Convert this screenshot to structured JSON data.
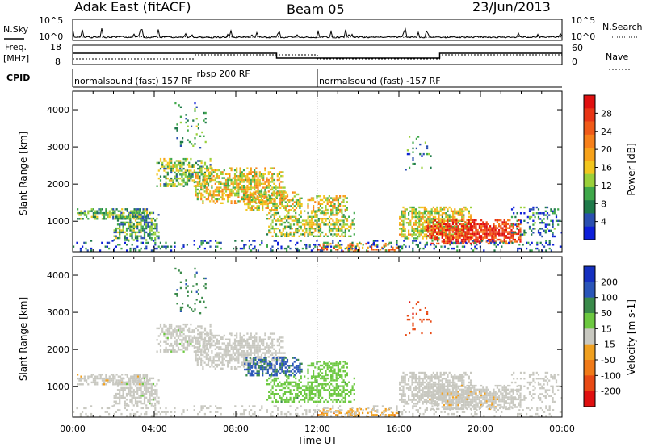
{
  "header": {
    "radar": "Adak East (fitACF)",
    "beam": "Beam 05",
    "date": "23/Jun/2013"
  },
  "noise_panel": {
    "left_label": "N.Sky",
    "left_ticks": [
      "10^5",
      "10^0"
    ],
    "right_ticks": [
      "10^5",
      "10^0"
    ],
    "right_label": "N.Search"
  },
  "freq_panel": {
    "left_label_1": "Freq.",
    "left_label_2": "[MHz]",
    "left_ticks": [
      "18",
      "8"
    ],
    "right_ticks": [
      "60",
      "0"
    ],
    "right_label": "Nave"
  },
  "cpid_panel": {
    "label": "CPID",
    "segments": [
      {
        "text": "normalsound (fast) 157 RF",
        "start_hour": 0,
        "end_hour": 6
      },
      {
        "text": "rbsp 200 RF",
        "start_hour": 6,
        "end_hour": 12
      },
      {
        "text": "normalsound (fast) -157 RF",
        "start_hour": 12,
        "end_hour": 24
      }
    ]
  },
  "axes": {
    "x_ticks": [
      "00:00",
      "04:00",
      "08:00",
      "12:00",
      "16:00",
      "20:00",
      "00:00"
    ],
    "x_label": "Time UT",
    "y_label": "Slant Range [km]",
    "y_ticks": [
      "1000",
      "2000",
      "3000",
      "4000"
    ]
  },
  "power_colorbar": {
    "label": "Power [dB]",
    "ticks": [
      "28",
      "24",
      "20",
      "16",
      "12",
      "8",
      "4"
    ],
    "colors": [
      "#0d1fd9",
      "#2a4fb0",
      "#1f7a4a",
      "#3fa84a",
      "#9ad03a",
      "#f2c61e",
      "#f7a21a",
      "#f7801a",
      "#f05a18",
      "#e83515",
      "#e01010"
    ]
  },
  "velocity_colorbar": {
    "label": "Velocity [m s-1]",
    "ticks": [
      "200",
      "100",
      "50",
      "15",
      "-15",
      "-50",
      "-100",
      "-200"
    ],
    "colors": [
      "#1530c0",
      "#2a55b8",
      "#3a8a4a",
      "#6cc840",
      "#c8c8c0",
      "#f0a020",
      "#f07a18",
      "#e84a15",
      "#e01010"
    ]
  },
  "chart_data": {
    "type": "heatmap",
    "x_range_hours": [
      0,
      24
    ],
    "y_range_km": [
      180,
      4500
    ],
    "power_range_db": [
      0,
      30
    ],
    "velocity_range_ms": [
      -250,
      250
    ],
    "cpid_step_hours": [
      6,
      12
    ],
    "scatter_regions": [
      {
        "t0": 0.2,
        "t1": 3.6,
        "r0": 1050,
        "r1": 1350,
        "power": 10,
        "velocity": -5,
        "density": 0.75
      },
      {
        "t0": 2.0,
        "t1": 4.2,
        "r0": 500,
        "r1": 1250,
        "power": 9,
        "velocity": 5,
        "density": 0.7
      },
      {
        "t0": 4.1,
        "t1": 6.8,
        "r0": 1950,
        "r1": 2700,
        "power": 11,
        "velocity": 5,
        "density": 0.6
      },
      {
        "t0": 6.0,
        "t1": 10.4,
        "r0": 1500,
        "r1": 2450,
        "power": 15,
        "velocity": 0,
        "density": 0.7
      },
      {
        "t0": 8.4,
        "t1": 11.2,
        "r0": 1300,
        "r1": 1800,
        "power": 15,
        "velocity": 150,
        "density": 0.65
      },
      {
        "t0": 9.5,
        "t1": 13.8,
        "r0": 600,
        "r1": 1300,
        "power": 13,
        "velocity": 60,
        "density": 0.6
      },
      {
        "t0": 11.5,
        "t1": 13.5,
        "r0": 1250,
        "r1": 1700,
        "power": 15,
        "velocity": 60,
        "density": 0.6
      },
      {
        "t0": 12.0,
        "t1": 16.0,
        "r0": 180,
        "r1": 420,
        "power": 20,
        "velocity": -60,
        "density": 0.45
      },
      {
        "t0": 16.0,
        "t1": 19.5,
        "r0": 550,
        "r1": 1400,
        "power": 14,
        "velocity": 0,
        "density": 0.8
      },
      {
        "t0": 17.3,
        "t1": 22.0,
        "r0": 400,
        "r1": 1050,
        "power": 26,
        "velocity": -5,
        "density": 0.85
      },
      {
        "t0": 21.5,
        "t1": 24.0,
        "r0": 600,
        "r1": 1400,
        "power": 6,
        "velocity": 0,
        "density": 0.35
      },
      {
        "t0": 16.3,
        "t1": 17.6,
        "r0": 2400,
        "r1": 3300,
        "power": 6,
        "velocity": -170,
        "density": 0.18
      },
      {
        "t0": 5.0,
        "t1": 6.5,
        "r0": 2900,
        "r1": 4200,
        "power": 8,
        "velocity": 120,
        "density": 0.12
      },
      {
        "t0": 0.0,
        "t1": 24.0,
        "r0": 180,
        "r1": 500,
        "power": 5,
        "velocity": 0,
        "density": 0.25
      }
    ]
  }
}
